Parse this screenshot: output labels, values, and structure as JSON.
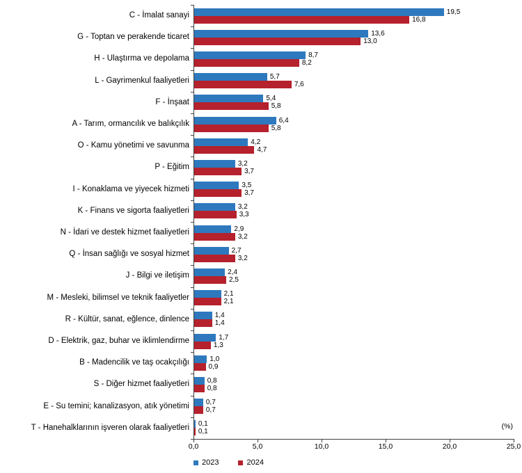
{
  "chart_data": {
    "type": "bar",
    "orientation": "horizontal",
    "title": "",
    "xlabel": "(%)",
    "xlim": [
      0,
      25
    ],
    "xticks": [
      0,
      5,
      10,
      15,
      20,
      25
    ],
    "xtick_labels": [
      "0,0",
      "5,0",
      "10,0",
      "15,0",
      "20,0",
      "25,0"
    ],
    "grid": false,
    "legend_position": "bottom",
    "categories": [
      "C - İmalat sanayi",
      "G - Toptan ve perakende ticaret",
      "H - Ulaştırma ve depolama",
      "L - Gayrimenkul faaliyetleri",
      "F - İnşaat",
      "A - Tarım, ormancılık ve balıkçılık",
      "O - Kamu yönetimi ve savunma",
      "P - Eğitim",
      "I - Konaklama ve yiyecek hizmeti",
      "K - Finans ve sigorta faaliyetleri",
      "N - İdari ve destek hizmet faaliyetleri",
      "Q - İnsan sağlığı ve sosyal hizmet",
      "J - Bilgi ve iletişim",
      "M - Mesleki, bilimsel ve teknik faaliyetler",
      "R - Kültür, sanat, eğlence, dinlence",
      "D - Elektrik, gaz, buhar ve iklimlendirme",
      "B - Madencilik ve taş ocakçılığı",
      "S - Diğer hizmet faaliyetleri",
      "E - Su temini; kanalizasyon, atık yönetimi",
      "T - Hanehalklarının işveren olarak faaliyetleri"
    ],
    "series": [
      {
        "name": "2023",
        "color": "#2E79BE",
        "values": [
          19.5,
          13.6,
          8.7,
          5.7,
          5.4,
          6.4,
          4.2,
          3.2,
          3.5,
          3.2,
          2.9,
          2.7,
          2.4,
          2.1,
          1.4,
          1.7,
          1.0,
          0.8,
          0.7,
          0.1
        ],
        "labels": [
          "19,5",
          "13,6",
          "8,7",
          "5,7",
          "5,4",
          "6,4",
          "4,2",
          "3,2",
          "3,5",
          "3,2",
          "2,9",
          "2,7",
          "2,4",
          "2,1",
          "1,4",
          "1,7",
          "1,0",
          "0,8",
          "0,7",
          "0,1"
        ]
      },
      {
        "name": "2024",
        "color": "#B5212C",
        "values": [
          16.8,
          13.0,
          8.2,
          7.6,
          5.8,
          5.8,
          4.7,
          3.7,
          3.7,
          3.3,
          3.2,
          3.2,
          2.5,
          2.1,
          1.4,
          1.3,
          0.9,
          0.8,
          0.7,
          0.1
        ],
        "labels": [
          "16,8",
          "13,0",
          "8,2",
          "7,6",
          "5,8",
          "5,8",
          "4,7",
          "3,7",
          "3,7",
          "3,3",
          "3,2",
          "3,2",
          "2,5",
          "2,1",
          "1,4",
          "1,3",
          "0,9",
          "0,8",
          "0,7",
          "0,1"
        ]
      }
    ],
    "unit_label": "(%)"
  }
}
